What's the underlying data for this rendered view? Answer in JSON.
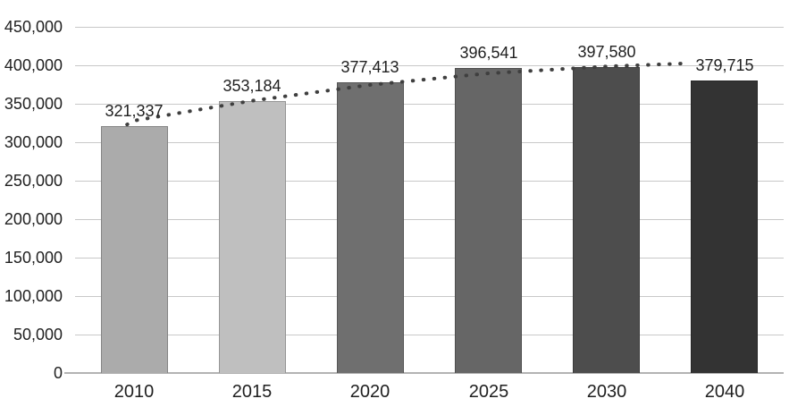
{
  "chart_data": {
    "type": "bar",
    "title": "",
    "xlabel": "",
    "ylabel": "",
    "categories": [
      "2010",
      "2015",
      "2020",
      "2025",
      "2030",
      "2040"
    ],
    "values": [
      321337,
      353184,
      377413,
      396541,
      397580,
      379715
    ],
    "data_labels": [
      "321,337",
      "353,184",
      "377,413",
      "396,541",
      "397,580",
      "379,715"
    ],
    "bar_colors": [
      "#ABABAB",
      "#BFBFBF",
      "#6F6F6F",
      "#666666",
      "#4D4D4D",
      "#333333"
    ],
    "ylim": [
      0,
      450000
    ],
    "ytick_step": 50000,
    "ytick_labels": [
      "0",
      "50,000",
      "100,000",
      "150,000",
      "200,000",
      "250,000",
      "300,000",
      "350,000",
      "400,000",
      "450,000"
    ],
    "grid": "horizontal-only",
    "legend": "none",
    "trendline": {
      "style": "dotted",
      "color": "#3F3F3F",
      "points": [
        {
          "i": -0.06,
          "v": 323000
        },
        {
          "i": 0.0,
          "v": 328000
        },
        {
          "i": 0.5,
          "v": 341000
        },
        {
          "i": 1.0,
          "v": 354000
        },
        {
          "i": 2.0,
          "v": 374500
        },
        {
          "i": 3.0,
          "v": 389500
        },
        {
          "i": 4.0,
          "v": 398500
        },
        {
          "i": 4.69,
          "v": 402500
        }
      ]
    },
    "colors": {
      "grid": "#C8C8C8",
      "axis": "#B3B3B3",
      "text": "#1F1F1F",
      "background": "#FFFFFF"
    }
  }
}
